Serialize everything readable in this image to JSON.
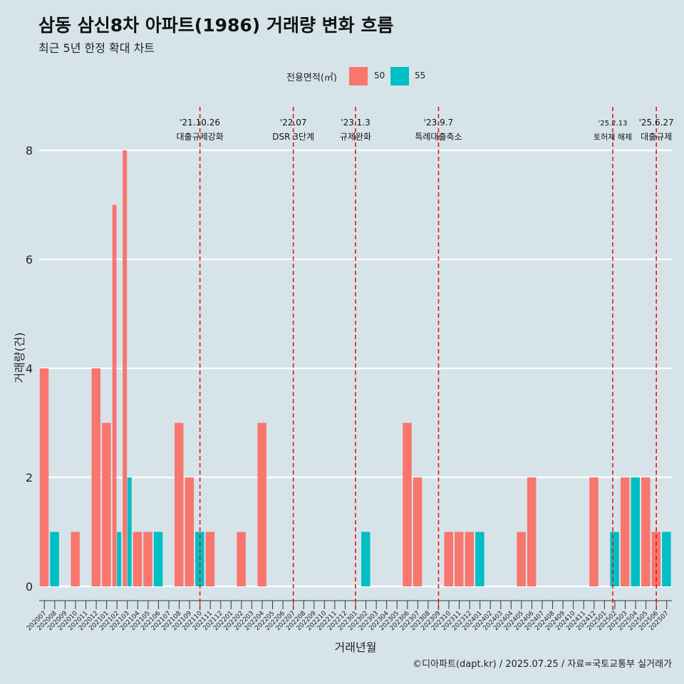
{
  "title": "삼동 삼신8차 아파트(1986) 거래량 변화 흐름",
  "subtitle": "최근 5년 한정 확대 차트",
  "legend": {
    "title": "전용면적(㎡)",
    "items": [
      {
        "label": "50",
        "color": "#f8766d"
      },
      {
        "label": "55",
        "color": "#00bfc4"
      }
    ]
  },
  "source": "©디아파트(dapt.kr) / 2025.07.25 / 자료=국토교통부 실거래가",
  "chart_data": {
    "type": "bar",
    "xlabel": "거래년월",
    "ylabel": "거래량(건)",
    "ylim": [
      0,
      8.5
    ],
    "yticks": [
      0,
      2,
      4,
      6,
      8
    ],
    "grid": true,
    "legend_position": "top",
    "categories": [
      "202007",
      "202008",
      "202009",
      "202010",
      "202011",
      "202012",
      "202101",
      "202102",
      "202103",
      "202104",
      "202105",
      "202106",
      "202107",
      "202108",
      "202109",
      "202110",
      "202111",
      "202112",
      "202201",
      "202202",
      "202203",
      "202204",
      "202205",
      "202206",
      "202207",
      "202208",
      "202209",
      "202210",
      "202211",
      "202212",
      "202301",
      "202302",
      "202303",
      "202304",
      "202305",
      "202306",
      "202307",
      "202308",
      "202309",
      "202310",
      "202311",
      "202312",
      "202401",
      "202402",
      "202403",
      "202404",
      "202405",
      "202406",
      "202407",
      "202408",
      "202409",
      "202410",
      "202411",
      "202412",
      "202501",
      "202502",
      "202503",
      "202504",
      "202505",
      "202506",
      "202507"
    ],
    "series": [
      {
        "name": "50",
        "color": "#f8766d",
        "values": [
          4,
          0,
          0,
          1,
          0,
          4,
          3,
          7,
          8,
          1,
          1,
          0,
          0,
          3,
          2,
          0,
          1,
          0,
          0,
          1,
          0,
          3,
          0,
          0,
          0,
          0,
          0,
          0,
          0,
          0,
          0,
          0,
          0,
          0,
          0,
          3,
          2,
          0,
          0,
          1,
          1,
          1,
          0,
          0,
          0,
          0,
          1,
          2,
          0,
          0,
          0,
          0,
          0,
          2,
          0,
          0,
          2,
          0,
          2,
          1,
          0
        ]
      },
      {
        "name": "55",
        "color": "#00bfc4",
        "values": [
          0,
          1,
          0,
          0,
          0,
          0,
          0,
          1,
          2,
          0,
          0,
          1,
          0,
          0,
          0,
          1,
          0,
          0,
          0,
          0,
          0,
          0,
          0,
          0,
          0,
          0,
          0,
          0,
          0,
          0,
          0,
          1,
          0,
          0,
          0,
          0,
          0,
          0,
          0,
          0,
          0,
          0,
          1,
          0,
          0,
          0,
          0,
          0,
          0,
          0,
          0,
          0,
          0,
          0,
          0,
          1,
          0,
          2,
          0,
          0,
          1
        ]
      }
    ],
    "events": [
      {
        "month": "202110",
        "offset": 0.0,
        "date": "'21.10.26",
        "label": "대출규제강화"
      },
      {
        "month": "202207",
        "offset": 0.0,
        "date": "'22.07",
        "label": "DSR 3단계"
      },
      {
        "month": "202301",
        "offset": 0.0,
        "date": "'23.1.3",
        "label": "규제완화"
      },
      {
        "month": "202309",
        "offset": 0.0,
        "date": "'23.9.7",
        "label": "특례대출축소"
      },
      {
        "month": "202502",
        "offset": -0.2,
        "date": "'25.2.13",
        "label": "토허제 해제"
      },
      {
        "month": "202506",
        "offset": 0.0,
        "date": "'25.6.27",
        "label": "대출규제"
      }
    ]
  }
}
